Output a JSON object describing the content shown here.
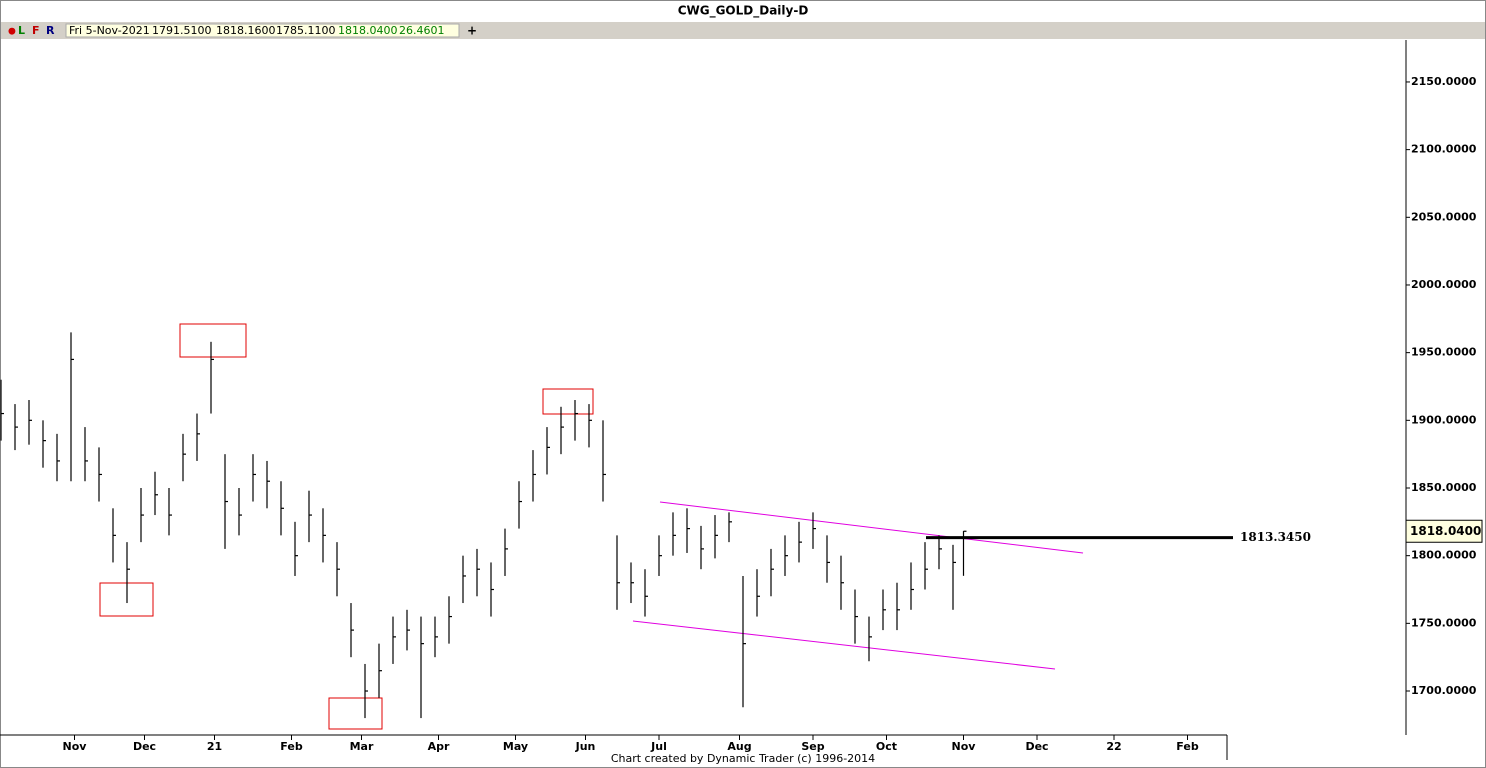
{
  "header": {
    "title": "CWG_GOLD_Daily-D"
  },
  "toolbar": {
    "dot": "●",
    "buttons": [
      "L",
      "F",
      "R"
    ],
    "date": "Fri 5-Nov-2021",
    "open": "1791.5100",
    "high": "1818.1600",
    "low": "1785.1100",
    "close": "1818.0400",
    "range": "26.4601",
    "add": "+"
  },
  "footer": {
    "text": "Chart created by Dynamic Trader  (c) 1996-2014"
  },
  "chart_data": {
    "type": "ohlc",
    "x": [
      0,
      4,
      8,
      12,
      16,
      20,
      24,
      28,
      32,
      36,
      40,
      44,
      48,
      52,
      56,
      60,
      64,
      68,
      72,
      76,
      80,
      84,
      88,
      92,
      96,
      100,
      104,
      108,
      112,
      116,
      120,
      124,
      128,
      132,
      136,
      140,
      144,
      148,
      152,
      156,
      160,
      164,
      168,
      172,
      176,
      180,
      184,
      188,
      192,
      196,
      200,
      204,
      208,
      212,
      216,
      220,
      224,
      228,
      232,
      236,
      240,
      244,
      248,
      252,
      256,
      260,
      264,
      268,
      272,
      275
    ],
    "high": [
      1930,
      1912,
      1915,
      1900,
      1890,
      1965,
      1895,
      1880,
      1835,
      1810,
      1850,
      1862,
      1850,
      1890,
      1905,
      1958,
      1875,
      1850,
      1875,
      1870,
      1855,
      1825,
      1848,
      1835,
      1810,
      1765,
      1720,
      1735,
      1755,
      1760,
      1755,
      1755,
      1770,
      1800,
      1805,
      1795,
      1820,
      1855,
      1878,
      1895,
      1910,
      1915,
      1912,
      1900,
      1815,
      1795,
      1790,
      1815,
      1832,
      1835,
      1822,
      1830,
      1832,
      1785,
      1790,
      1805,
      1815,
      1825,
      1832,
      1815,
      1800,
      1775,
      1755,
      1775,
      1780,
      1795,
      1810,
      1815,
      1808,
      1818.16
    ],
    "low": [
      1885,
      1878,
      1882,
      1865,
      1855,
      1855,
      1855,
      1840,
      1795,
      1765,
      1810,
      1830,
      1815,
      1855,
      1870,
      1905,
      1805,
      1815,
      1840,
      1835,
      1815,
      1785,
      1810,
      1795,
      1770,
      1725,
      1680,
      1695,
      1720,
      1730,
      1680,
      1725,
      1735,
      1765,
      1770,
      1755,
      1785,
      1820,
      1840,
      1860,
      1875,
      1885,
      1880,
      1840,
      1760,
      1765,
      1755,
      1785,
      1800,
      1802,
      1790,
      1798,
      1810,
      1688,
      1755,
      1770,
      1785,
      1795,
      1805,
      1780,
      1760,
      1735,
      1722,
      1745,
      1745,
      1760,
      1775,
      1790,
      1760,
      1785.11
    ],
    "close": [
      1905,
      1895,
      1900,
      1885,
      1870,
      1945,
      1870,
      1860,
      1815,
      1790,
      1830,
      1845,
      1830,
      1875,
      1890,
      1945,
      1840,
      1830,
      1860,
      1855,
      1835,
      1800,
      1830,
      1815,
      1790,
      1745,
      1700,
      1715,
      1740,
      1745,
      1735,
      1740,
      1755,
      1785,
      1790,
      1775,
      1805,
      1840,
      1860,
      1880,
      1895,
      1905,
      1900,
      1860,
      1780,
      1780,
      1770,
      1800,
      1815,
      1820,
      1805,
      1815,
      1825,
      1735,
      1770,
      1790,
      1800,
      1810,
      1820,
      1795,
      1780,
      1755,
      1740,
      1760,
      1760,
      1775,
      1790,
      1805,
      1795,
      1818.04
    ],
    "color": "#000000",
    "xlim": [
      0,
      400
    ],
    "xticks": [
      {
        "value": 21,
        "label": "Nov"
      },
      {
        "value": 41,
        "label": "Dec"
      },
      {
        "value": 61,
        "label": "21"
      },
      {
        "value": 83,
        "label": "Feb"
      },
      {
        "value": 103,
        "label": "Mar"
      },
      {
        "value": 125,
        "label": "Apr"
      },
      {
        "value": 147,
        "label": "May"
      },
      {
        "value": 167,
        "label": "Jun"
      },
      {
        "value": 188,
        "label": "Jul"
      },
      {
        "value": 211,
        "label": "Aug"
      },
      {
        "value": 232,
        "label": "Sep"
      },
      {
        "value": 253,
        "label": "Oct"
      },
      {
        "value": 275,
        "label": "Nov"
      },
      {
        "value": 296,
        "label": "Dec"
      },
      {
        "value": 318,
        "label": "22"
      },
      {
        "value": 339,
        "label": "Feb"
      }
    ],
    "ylim": [
      1667.5,
      2181
    ],
    "yticks": [
      {
        "value": 1700,
        "label": "1700.0000"
      },
      {
        "value": 1750,
        "label": "1750.0000"
      },
      {
        "value": 1800,
        "label": "1800.0000"
      },
      {
        "value": 1850,
        "label": "1850.0000"
      },
      {
        "value": 1900,
        "label": "1900.0000"
      },
      {
        "value": 1950,
        "label": "1950.0000"
      },
      {
        "value": 2000,
        "label": "2000.0000"
      },
      {
        "value": 2050,
        "label": "2050.0000"
      },
      {
        "value": 2100,
        "label": "2100.0000"
      },
      {
        "value": 2150,
        "label": "2150.0000"
      }
    ],
    "level": {
      "value": 1813.345,
      "label": "1813.3450"
    },
    "last_price": {
      "value": 1818.04,
      "label": "1818.0400"
    }
  }
}
